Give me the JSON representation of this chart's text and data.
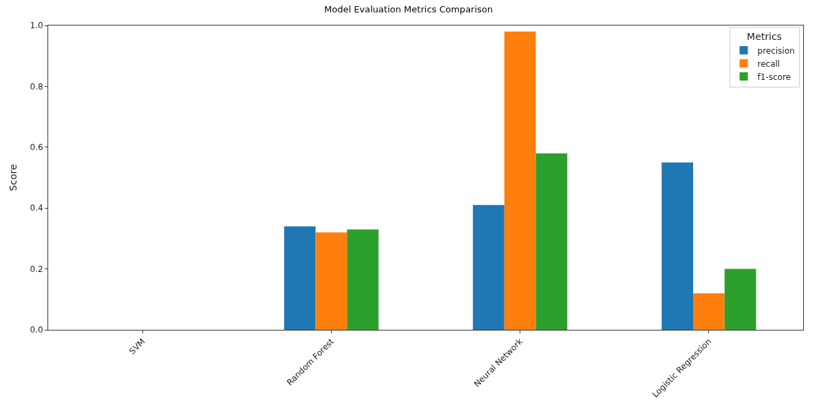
{
  "chart_data": {
    "type": "bar",
    "title": "Model Evaluation Metrics Comparison",
    "ylabel": "Score",
    "legend_title": "Metrics",
    "categories": [
      "SVM",
      "Random Forest",
      "Neural Network",
      "Logistic Regression"
    ],
    "series": [
      {
        "name": "precision",
        "color": "#1f77b4",
        "values": [
          0,
          0.34,
          0.41,
          0.55
        ]
      },
      {
        "name": "recall",
        "color": "#ff7f0e",
        "values": [
          0,
          0.32,
          0.98,
          0.12
        ]
      },
      {
        "name": "f1-score",
        "color": "#2ca02c",
        "values": [
          0,
          0.33,
          0.58,
          0.2
        ]
      }
    ],
    "ylim": [
      0,
      1
    ],
    "yticks": [
      {
        "value": 0,
        "label": "0.0"
      },
      {
        "value": 0.2,
        "label": "0.2"
      },
      {
        "value": 0.4,
        "label": "0.4"
      },
      {
        "value": 0.6,
        "label": "0.6"
      },
      {
        "value": 0.8,
        "label": "0.8"
      },
      {
        "value": 1,
        "label": "1.0"
      }
    ],
    "legend": "top right"
  }
}
